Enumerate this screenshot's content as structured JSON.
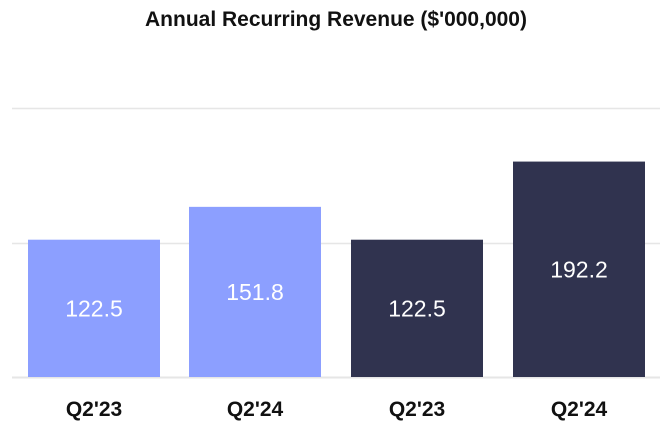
{
  "chart_data": {
    "type": "bar",
    "title": "Annual Recurring Revenue ($'000,000)",
    "xlabel": "",
    "ylabel": "",
    "categories": [
      "Q2'23",
      "Q2'24",
      "Q2'23",
      "Q2'24"
    ],
    "values": [
      122.5,
      151.8,
      122.5,
      192.2
    ],
    "value_labels": [
      "122.5",
      "151.8",
      "122.5",
      "192.2"
    ],
    "bar_colors": [
      "#8c9fff",
      "#8c9fff",
      "#30334f",
      "#30334f"
    ],
    "ylim": [
      0,
      240
    ],
    "gridlines": [
      0,
      120,
      240
    ],
    "grid": true,
    "legend": "none"
  },
  "colors": {
    "grid": "#e6e6e6",
    "text": "#111111",
    "value_text": "#ffffff"
  }
}
